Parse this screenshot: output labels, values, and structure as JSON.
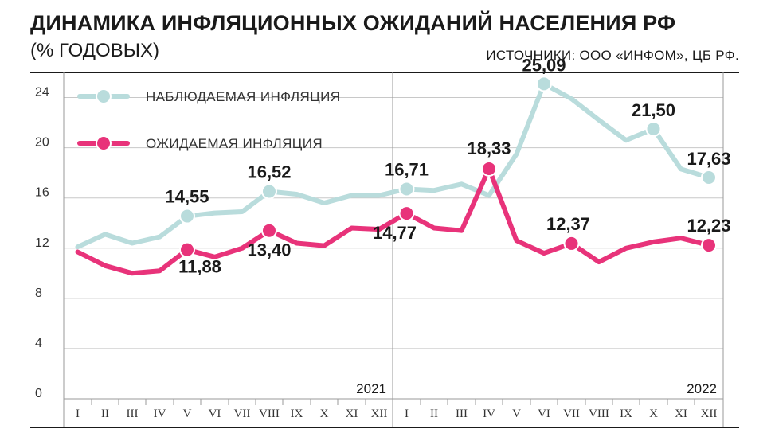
{
  "header": {
    "title": "ДИНАМИКА ИНФЛЯЦИОННЫХ ОЖИДАНИЙ НАСЕЛЕНИЯ РФ",
    "subtitle": "(% ГОДОВЫХ)",
    "source": "ИСТОЧНИКИ: ООО «ИНФОМ», ЦБ РФ."
  },
  "chart_data": {
    "type": "line",
    "title": "ДИНАМИКА ИНФЛЯЦИОННЫХ ОЖИДАНИЙ НАСЕЛЕНИЯ РФ",
    "subtitle": "(% ГОДОВЫХ)",
    "categories": [
      "I",
      "II",
      "III",
      "IV",
      "V",
      "VI",
      "VII",
      "VIII",
      "IX",
      "X",
      "XI",
      "XII",
      "I",
      "II",
      "III",
      "IV",
      "V",
      "VI",
      "VII",
      "VIII",
      "IX",
      "X",
      "XI",
      "XII"
    ],
    "years": [
      {
        "label": "2021",
        "months": 12
      },
      {
        "label": "2022",
        "months": 12
      }
    ],
    "ylim": [
      0,
      26
    ],
    "yticks": [
      0,
      4,
      8,
      12,
      16,
      20,
      24
    ],
    "grid": true,
    "legend_position": "top-left",
    "series": [
      {
        "name": "НАБЛЮДАЕМАЯ ИНФЛЯЦИЯ",
        "color": "#b9dcdc",
        "values": [
          12.1,
          13.1,
          12.4,
          12.9,
          14.55,
          14.8,
          14.9,
          16.52,
          16.3,
          15.6,
          16.2,
          16.2,
          16.71,
          16.6,
          17.1,
          16.2,
          19.5,
          25.09,
          23.9,
          22.2,
          20.6,
          21.5,
          18.3,
          17.63
        ],
        "points": [
          {
            "index": 4,
            "label": "14,55"
          },
          {
            "index": 7,
            "label": "16,52"
          },
          {
            "index": 12,
            "label": "16,71"
          },
          {
            "index": 17,
            "label": "25,09"
          },
          {
            "index": 21,
            "label": "21,50"
          },
          {
            "index": 23,
            "label": "17,63"
          }
        ]
      },
      {
        "name": "ОЖИДАЕМАЯ ИНФЛЯЦИЯ",
        "color": "#e8337a",
        "values": [
          11.7,
          10.6,
          10.0,
          10.2,
          11.88,
          11.3,
          12.0,
          13.4,
          12.4,
          12.2,
          13.6,
          13.5,
          14.77,
          13.6,
          13.4,
          18.33,
          12.6,
          11.6,
          12.37,
          10.9,
          12.0,
          12.5,
          12.8,
          12.23
        ],
        "points": [
          {
            "index": 4,
            "label": "11,88"
          },
          {
            "index": 7,
            "label": "13,40"
          },
          {
            "index": 12,
            "label": "14,77"
          },
          {
            "index": 15,
            "label": "18,33"
          },
          {
            "index": 18,
            "label": "12,37"
          },
          {
            "index": 23,
            "label": "12,23"
          }
        ]
      }
    ]
  }
}
